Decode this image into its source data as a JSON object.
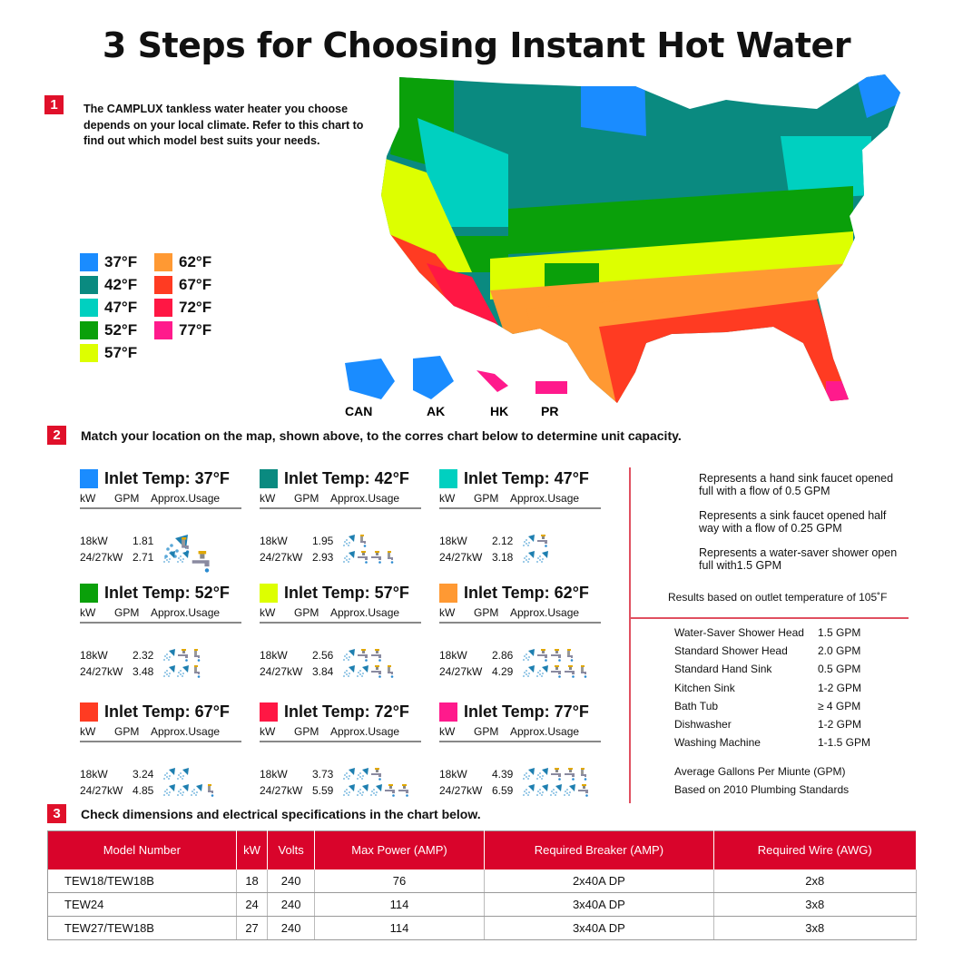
{
  "title": "3 Steps for Choosing Instant Hot Water",
  "colors": {
    "37": "#1a8cff",
    "42": "#0a8a80",
    "47": "#00d0c0",
    "52": "#0aa00a",
    "57": "#ddff00",
    "62": "#ff9933",
    "67": "#ff3b22",
    "72": "#ff1744",
    "77": "#ff1a8c",
    "accent": "#d9042b"
  },
  "step1": {
    "number": "1",
    "text": "The CAMPLUX tankless water heater you choose depends on your local climate. Refer to this chart to find out which model best suits your needs."
  },
  "legend": [
    {
      "label": "37°F",
      "color": "#1a8cff"
    },
    {
      "label": "42°F",
      "color": "#0a8a80"
    },
    {
      "label": "47°F",
      "color": "#00d0c0"
    },
    {
      "label": "52°F",
      "color": "#0aa00a"
    },
    {
      "label": "57°F",
      "color": "#ddff00"
    },
    {
      "label": "62°F",
      "color": "#ff9933"
    },
    {
      "label": "67°F",
      "color": "#ff3b22"
    },
    {
      "label": "72°F",
      "color": "#ff1744"
    },
    {
      "label": "77°F",
      "color": "#ff1a8c"
    }
  ],
  "map": {
    "labels": {
      "can": "CAN",
      "ak": "AK",
      "hk": "HK",
      "pr": "PR"
    }
  },
  "step2": {
    "number": "2",
    "text": "Match your location on the map, shown above, to the corres chart below to determine unit capacity."
  },
  "columns": {
    "kw": "kW",
    "gpm": "GPM",
    "usage": "Approx.Usage"
  },
  "panels": [
    {
      "title": "Inlet Temp: 37°F",
      "color": "#1a8cff",
      "rows": [
        {
          "kw": "18kW",
          "gpm": "1.81",
          "icons": [
            "shower",
            "half-faucet"
          ]
        },
        {
          "kw": "24/27kW",
          "gpm": "2.71",
          "icons": [
            "shower",
            "shower",
            "faucet"
          ]
        }
      ]
    },
    {
      "title": "Inlet Temp: 42°F",
      "color": "#0a8a80",
      "rows": [
        {
          "kw": "18kW",
          "gpm": "1.95",
          "icons": [
            "shower",
            "half-faucet"
          ]
        },
        {
          "kw": "24/27kW",
          "gpm": "2.93",
          "icons": [
            "shower",
            "faucet",
            "faucet",
            "half-faucet"
          ]
        }
      ]
    },
    {
      "title": "Inlet Temp: 47°F",
      "color": "#00d0c0",
      "rows": [
        {
          "kw": "18kW",
          "gpm": "2.12",
          "icons": [
            "shower",
            "faucet"
          ]
        },
        {
          "kw": "24/27kW",
          "gpm": "3.18",
          "icons": [
            "shower",
            "shower"
          ]
        }
      ]
    },
    {
      "title": "Inlet Temp: 52°F",
      "color": "#0aa00a",
      "rows": [
        {
          "kw": "18kW",
          "gpm": "2.32",
          "icons": [
            "shower",
            "faucet",
            "half-faucet"
          ]
        },
        {
          "kw": "24/27kW",
          "gpm": "3.48",
          "icons": [
            "shower",
            "shower",
            "half-faucet"
          ]
        }
      ]
    },
    {
      "title": "Inlet Temp: 57°F",
      "color": "#ddff00",
      "rows": [
        {
          "kw": "18kW",
          "gpm": "2.56",
          "icons": [
            "shower",
            "faucet",
            "faucet"
          ]
        },
        {
          "kw": "24/27kW",
          "gpm": "3.84",
          "icons": [
            "shower",
            "shower",
            "faucet",
            "half-faucet"
          ]
        }
      ]
    },
    {
      "title": "Inlet Temp: 62°F",
      "color": "#ff9933",
      "rows": [
        {
          "kw": "18kW",
          "gpm": "2.86",
          "icons": [
            "shower",
            "faucet",
            "faucet",
            "half-faucet"
          ]
        },
        {
          "kw": "24/27kW",
          "gpm": "4.29",
          "icons": [
            "shower",
            "shower",
            "faucet",
            "faucet",
            "half-faucet"
          ]
        }
      ]
    },
    {
      "title": "Inlet Temp: 67°F",
      "color": "#ff3b22",
      "rows": [
        {
          "kw": "18kW",
          "gpm": "3.24",
          "icons": [
            "shower",
            "shower"
          ]
        },
        {
          "kw": "24/27kW",
          "gpm": "4.85",
          "icons": [
            "shower",
            "shower",
            "shower",
            "half-faucet"
          ]
        }
      ]
    },
    {
      "title": "Inlet Temp: 72°F",
      "color": "#ff1744",
      "rows": [
        {
          "kw": "18kW",
          "gpm": "3.73",
          "icons": [
            "shower",
            "shower",
            "faucet"
          ]
        },
        {
          "kw": "24/27kW",
          "gpm": "5.59",
          "icons": [
            "shower",
            "shower",
            "shower",
            "faucet",
            "faucet"
          ]
        }
      ]
    },
    {
      "title": "Inlet Temp: 77°F",
      "color": "#ff1a8c",
      "rows": [
        {
          "kw": "18kW",
          "gpm": "4.39",
          "icons": [
            "shower",
            "shower",
            "faucet",
            "faucet",
            "half-faucet"
          ]
        },
        {
          "kw": "24/27kW",
          "gpm": "6.59",
          "icons": [
            "shower",
            "shower",
            "shower",
            "shower",
            "faucet"
          ]
        }
      ]
    }
  ],
  "key": {
    "faucet": "Represents a hand sink faucet opened full with a flow of 0.5 GPM",
    "half_faucet": "Represents a sink faucet opened half way with a flow of 0.25 GPM",
    "shower": "Represents a water-saver shower open full with1.5 GPM",
    "note": "Results based on outlet temperature of 105˚F"
  },
  "fixtures": [
    [
      "Water-Saver Shower Head",
      "1.5 GPM"
    ],
    [
      "Standard Shower Head",
      "2.0 GPM"
    ],
    [
      "Standard Hand Sink",
      "0.5 GPM"
    ],
    [
      "Kitchen Sink",
      "1-2 GPM"
    ],
    [
      "Bath Tub",
      "≥ 4 GPM"
    ],
    [
      "Dishwasher",
      "1-2 GPM"
    ],
    [
      "Washing Machine",
      "1-1.5 GPM"
    ]
  ],
  "fixtures_note1": "Average Gallons Per Miunte (GPM)",
  "fixtures_note2": "Based on 2010 Plumbing Standards",
  "step3": {
    "number": "3",
    "text": "Check dimensions and electrical specifications in the chart below."
  },
  "table": {
    "headers": [
      "Model Number",
      "kW",
      "Volts",
      "Max Power (AMP)",
      "Required Breaker (AMP)",
      "Required Wire (AWG)"
    ],
    "rows": [
      [
        "TEW18/TEW18B",
        "18",
        "240",
        "76",
        "2x40A DP",
        "2x8"
      ],
      [
        "TEW24",
        "24",
        "240",
        "114",
        "3x40A DP",
        "3x8"
      ],
      [
        "TEW27/TEW18B",
        "27",
        "240",
        "114",
        "3x40A DP",
        "3x8"
      ]
    ]
  }
}
